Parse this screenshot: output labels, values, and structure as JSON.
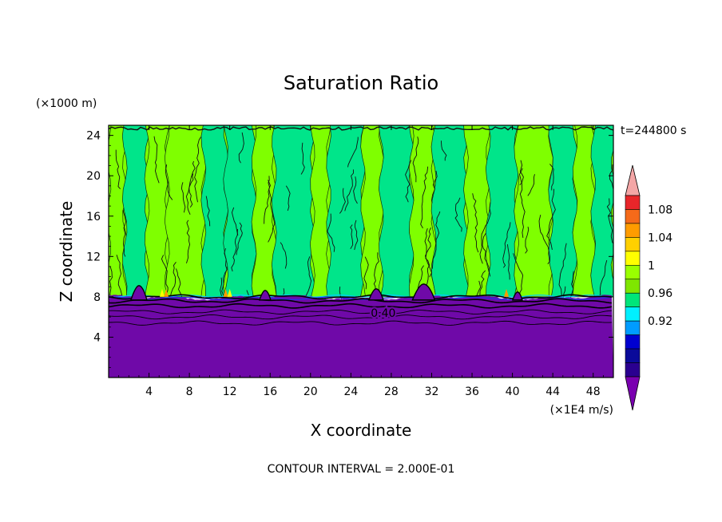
{
  "chart_data": {
    "type": "contour",
    "title": "Saturation Ratio",
    "xlabel": "X coordinate",
    "ylabel": "Z coordinate",
    "x_units": "(×1E4 m/s)",
    "y_units": "(×1000 m)",
    "time_label": "t=244800 s",
    "contour_interval_label": "CONTOUR INTERVAL = 2.000E-01",
    "contour_label": "0.40",
    "xlim": [
      0,
      50
    ],
    "ylim": [
      0,
      25
    ],
    "x_ticks": [
      4,
      8,
      12,
      16,
      20,
      24,
      28,
      32,
      36,
      40,
      44,
      48
    ],
    "y_ticks": [
      4,
      8,
      12,
      16,
      20,
      24
    ],
    "boundary_layer_top": 8,
    "bands": [
      {
        "min": 8,
        "max": 25,
        "phase": "column",
        "start": 0.0,
        "width": 1.6,
        "level": "1"
      },
      {
        "min": 8,
        "max": 25,
        "phase": "column",
        "start": 1.6,
        "width": 2.2,
        "level": "0.98"
      },
      {
        "min": 8,
        "max": 25,
        "phase": "column",
        "start": 3.8,
        "width": 2.0,
        "level": "1"
      },
      {
        "min": 8,
        "max": 25,
        "phase": "column",
        "start": 5.8,
        "width": 3.6,
        "level": "1"
      },
      {
        "min": 8,
        "max": 25,
        "phase": "column",
        "start": 9.4,
        "width": 2.2,
        "level": "0.98"
      },
      {
        "min": 8,
        "max": 25,
        "phase": "column",
        "start": 11.6,
        "width": 2.8,
        "level": "0.98"
      },
      {
        "min": 8,
        "max": 25,
        "phase": "column",
        "start": 14.4,
        "width": 2.0,
        "level": "1"
      },
      {
        "min": 8,
        "max": 25,
        "phase": "column",
        "start": 16.4,
        "width": 3.8,
        "level": "0.98"
      },
      {
        "min": 8,
        "max": 25,
        "phase": "column",
        "start": 20.2,
        "width": 1.6,
        "level": "1"
      },
      {
        "min": 8,
        "max": 25,
        "phase": "column",
        "start": 21.8,
        "width": 3.4,
        "level": "0.98"
      },
      {
        "min": 8,
        "max": 25,
        "phase": "column",
        "start": 25.2,
        "width": 1.8,
        "level": "1"
      },
      {
        "min": 8,
        "max": 25,
        "phase": "column",
        "start": 27.0,
        "width": 3.0,
        "level": "0.98"
      },
      {
        "min": 8,
        "max": 25,
        "phase": "column",
        "start": 30.0,
        "width": 2.2,
        "level": "1"
      },
      {
        "min": 8,
        "max": 25,
        "phase": "column",
        "start": 32.2,
        "width": 3.2,
        "level": "0.98"
      },
      {
        "min": 8,
        "max": 25,
        "phase": "column",
        "start": 35.4,
        "width": 2.2,
        "level": "1"
      },
      {
        "min": 8,
        "max": 25,
        "phase": "column",
        "start": 37.6,
        "width": 2.8,
        "level": "0.98"
      },
      {
        "min": 8,
        "max": 25,
        "phase": "column",
        "start": 40.4,
        "width": 3.4,
        "level": "1"
      },
      {
        "min": 8,
        "max": 25,
        "phase": "column",
        "start": 43.8,
        "width": 2.4,
        "level": "0.98"
      },
      {
        "min": 8,
        "max": 25,
        "phase": "column",
        "start": 46.2,
        "width": 1.8,
        "level": "1"
      },
      {
        "min": 8,
        "max": 25,
        "phase": "column",
        "start": 48.0,
        "width": 2.0,
        "level": "0.98"
      }
    ],
    "colorbar": {
      "ticks": [
        "1.08",
        "1.04",
        "1",
        "0.96",
        "0.92"
      ],
      "colors": [
        "#f4a6a6",
        "#e8262a",
        "#f56a1a",
        "#ff9c00",
        "#ffd000",
        "#ffff00",
        "#9aff00",
        "#7fe600",
        "#00e57a",
        "#00f0ff",
        "#009cff",
        "#0000d0",
        "#0a0a9a",
        "#2a0090",
        "#7a00b0"
      ]
    },
    "colors": {
      "low": "#6f09a8",
      "green": "#7fff00",
      "teal": "#00e58a",
      "cyan": "#00ccff",
      "blue": "#2c2ce0",
      "orange": "#ff9900",
      "yellow": "#ffff00"
    }
  }
}
